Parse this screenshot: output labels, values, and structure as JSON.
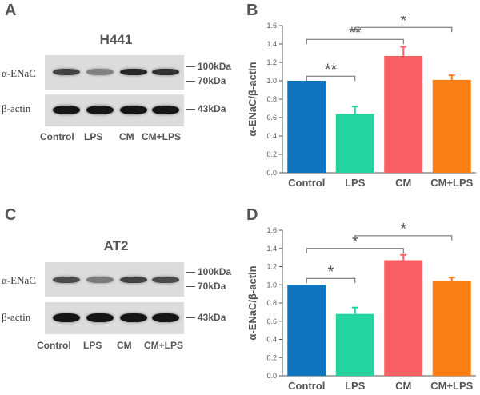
{
  "panels": {
    "A": {
      "letter": "A",
      "cell_line": "H441",
      "labels": {
        "enac": "α-ENaC",
        "actin": "β-actin"
      },
      "markers": [
        "100kDa",
        "70kDa",
        "43kDa"
      ],
      "lanes": [
        "Control",
        "LPS",
        "CM",
        "CM+LPS"
      ],
      "enac_intensity": [
        0.75,
        0.35,
        0.9,
        0.85
      ],
      "actin_intensity": [
        1,
        1,
        1,
        1
      ]
    },
    "C": {
      "letter": "C",
      "cell_line": "AT2",
      "labels": {
        "enac": "α-ENaC",
        "actin": "β-actin"
      },
      "markers": [
        "100kDa",
        "70kDa",
        "43kDa"
      ],
      "lanes": [
        "Control",
        "LPS",
        "CM",
        "CM+LPS"
      ],
      "enac_intensity": [
        0.7,
        0.4,
        0.75,
        0.7
      ],
      "actin_intensity": [
        1,
        1,
        1,
        1
      ]
    },
    "B": {
      "letter": "B"
    },
    "D": {
      "letter": "D"
    }
  },
  "chart_data": [
    {
      "type": "bar",
      "panel": "B",
      "categories": [
        "Control",
        "LPS",
        "CM",
        "CM+LPS"
      ],
      "values": [
        1.0,
        0.64,
        1.27,
        1.01
      ],
      "errors": [
        0,
        0.08,
        0.1,
        0.05
      ],
      "colors": [
        "#0e76c0",
        "#22d4a0",
        "#f85f63",
        "#fb7e15"
      ],
      "ylabel": "α-ENaC/β-actin",
      "ylim": [
        0,
        1.6
      ],
      "yticks": [
        "0.0",
        "0.2",
        "0.4",
        "0.6",
        "0.8",
        "1.0",
        "1.2",
        "1.4",
        "1.6"
      ],
      "brackets": [
        {
          "from": 0,
          "to": 1,
          "label": "**",
          "level": 1.05
        },
        {
          "from": 0,
          "to": 2,
          "label": "**",
          "level": 1.45
        },
        {
          "from": 1,
          "to": 3,
          "label": "*",
          "level": 1.58
        }
      ]
    },
    {
      "type": "bar",
      "panel": "D",
      "categories": [
        "Control",
        "LPS",
        "CM",
        "CM+LPS"
      ],
      "values": [
        1.0,
        0.68,
        1.27,
        1.04
      ],
      "errors": [
        0,
        0.07,
        0.06,
        0.04
      ],
      "colors": [
        "#0e76c0",
        "#22d4a0",
        "#f85f63",
        "#fb7e15"
      ],
      "ylabel": "α-ENaC/β-actin",
      "ylim": [
        0,
        1.6
      ],
      "yticks": [
        "0.0",
        "0.2",
        "0.4",
        "0.6",
        "0.8",
        "1.0",
        "1.2",
        "1.4",
        "1.6"
      ],
      "brackets": [
        {
          "from": 0,
          "to": 1,
          "label": "*",
          "level": 1.07
        },
        {
          "from": 0,
          "to": 2,
          "label": "*",
          "level": 1.4
        },
        {
          "from": 1,
          "to": 3,
          "label": "*",
          "level": 1.54
        }
      ]
    }
  ]
}
